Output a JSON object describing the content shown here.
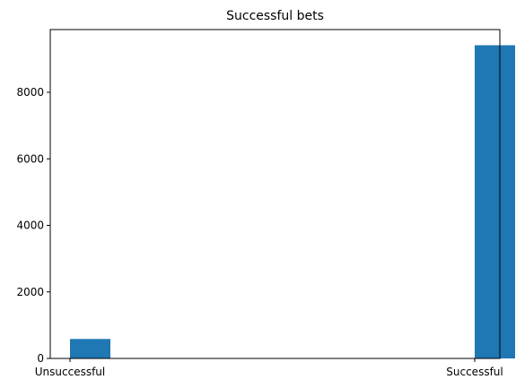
{
  "chart_data": {
    "type": "bar",
    "title": "Successful bets",
    "xlabel": "",
    "ylabel": "",
    "categories": [
      "Unsuccessful",
      "Successful"
    ],
    "values": [
      585,
      9415
    ],
    "ylim": [
      0,
      9886
    ],
    "yticks": [
      0,
      2000,
      4000,
      6000,
      8000
    ],
    "ytick_labels": [
      "0",
      "2000",
      "4000",
      "6000",
      "8000"
    ],
    "grid": false,
    "bar_color": "#1f77b4"
  }
}
